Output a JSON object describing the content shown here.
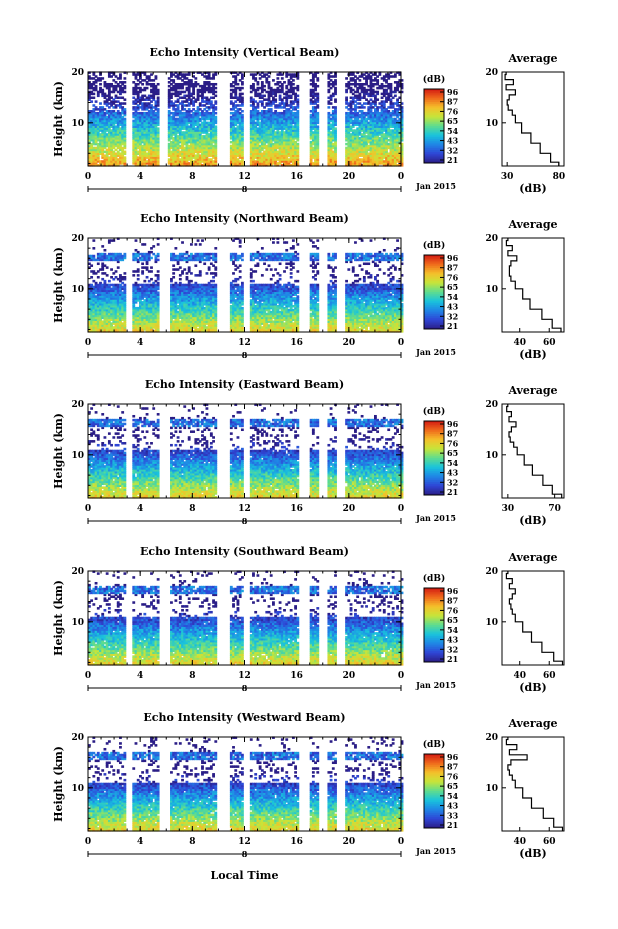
{
  "xlabel": "Local Time",
  "chart_data": [
    {
      "type": "heatmap",
      "title": "Echo Intensity (Vertical Beam)",
      "ylabel": "Height (km)",
      "x_ticks": [
        "0",
        "4",
        "8",
        "12",
        "16",
        "20",
        "0"
      ],
      "y_ticks": [
        "10",
        "20"
      ],
      "xlim": [
        0,
        24
      ],
      "ylim": [
        1.5,
        20
      ],
      "date_marker": "8",
      "date_label": "Jan 2015",
      "colorbar": {
        "unit": "(dB)",
        "ticks": [
          "96",
          "87",
          "76",
          "65",
          "54",
          "43",
          "32",
          "21"
        ]
      },
      "profile": {
        "title": "Average",
        "xlabel": "(dB)",
        "x_ticks": [
          "30",
          "80"
        ],
        "xlim": [
          25,
          85
        ],
        "y_ticks": [
          "10",
          "20"
        ],
        "heights": [
          1.5,
          3,
          5,
          7,
          9,
          11,
          12,
          13,
          14,
          15,
          16,
          17,
          18,
          19,
          20
        ],
        "values": [
          80,
          72,
          62,
          53,
          44,
          38,
          35,
          31,
          30,
          32,
          38,
          29,
          36,
          28,
          29
        ]
      }
    },
    {
      "type": "heatmap",
      "title": "Echo Intensity (Northward Beam)",
      "ylabel": "Height (km)",
      "x_ticks": [
        "0",
        "4",
        "8",
        "12",
        "16",
        "20",
        "0"
      ],
      "y_ticks": [
        "10",
        "20"
      ],
      "xlim": [
        0,
        24
      ],
      "ylim": [
        1.5,
        20
      ],
      "date_marker": "8",
      "date_label": "Jan 2015",
      "colorbar": {
        "unit": "(dB)",
        "ticks": [
          "96",
          "87",
          "76",
          "65",
          "54",
          "43",
          "32",
          "21"
        ]
      },
      "profile": {
        "title": "Average",
        "xlabel": "(dB)",
        "x_ticks": [
          "40",
          "60"
        ],
        "xlim": [
          28,
          70
        ],
        "y_ticks": [
          "10",
          "20"
        ],
        "heights": [
          1.5,
          3,
          5,
          7,
          9,
          11,
          12,
          13,
          14,
          15,
          16,
          17,
          18,
          19,
          20
        ],
        "values": [
          68,
          62,
          55,
          47,
          42,
          37,
          34,
          33,
          33,
          34,
          38,
          32,
          35,
          31,
          32
        ]
      }
    },
    {
      "type": "heatmap",
      "title": "Echo Intensity (Eastward Beam)",
      "ylabel": "Height (km)",
      "x_ticks": [
        "0",
        "4",
        "8",
        "12",
        "16",
        "20",
        "0"
      ],
      "y_ticks": [
        "10",
        "20"
      ],
      "xlim": [
        0,
        24
      ],
      "ylim": [
        1.5,
        20
      ],
      "date_marker": "8",
      "date_label": "Jan 2015",
      "colorbar": {
        "unit": "(dB)",
        "ticks": [
          "96",
          "87",
          "76",
          "65",
          "54",
          "43",
          "32",
          "21"
        ]
      },
      "profile": {
        "title": "Average",
        "xlabel": "(dB)",
        "x_ticks": [
          "30",
          "70"
        ],
        "xlim": [
          25,
          78
        ],
        "y_ticks": [
          "10",
          "20"
        ],
        "heights": [
          1.5,
          3,
          5,
          7,
          9,
          11,
          12,
          13,
          14,
          15,
          16,
          17,
          18,
          19,
          20
        ],
        "values": [
          76,
          68,
          60,
          51,
          44,
          38,
          35,
          32,
          31,
          33,
          37,
          31,
          33,
          29,
          30
        ]
      }
    },
    {
      "type": "heatmap",
      "title": "Echo Intensity (Southward Beam)",
      "ylabel": "Height (km)",
      "x_ticks": [
        "0",
        "4",
        "8",
        "12",
        "16",
        "20",
        "0"
      ],
      "y_ticks": [
        "10",
        "20"
      ],
      "xlim": [
        0,
        24
      ],
      "ylim": [
        1.5,
        20
      ],
      "date_marker": "8",
      "date_label": "Jan 2015",
      "colorbar": {
        "unit": "(dB)",
        "ticks": [
          "96",
          "87",
          "76",
          "65",
          "54",
          "43",
          "32",
          "21"
        ]
      },
      "profile": {
        "title": "Average",
        "xlabel": "(dB)",
        "x_ticks": [
          "40",
          "60"
        ],
        "xlim": [
          28,
          70
        ],
        "y_ticks": [
          "10",
          "20"
        ],
        "heights": [
          1.5,
          3,
          5,
          7,
          9,
          11,
          12,
          13,
          14,
          15,
          16,
          17,
          18,
          19,
          20
        ],
        "values": [
          69,
          63,
          55,
          48,
          42,
          37,
          35,
          34,
          33,
          35,
          37,
          33,
          35,
          31,
          32
        ]
      }
    },
    {
      "type": "heatmap",
      "title": "Echo Intensity (Westward Beam)",
      "ylabel": "Height (km)",
      "x_ticks": [
        "0",
        "4",
        "8",
        "12",
        "16",
        "20",
        "0"
      ],
      "y_ticks": [
        "10",
        "20"
      ],
      "xlim": [
        0,
        24
      ],
      "ylim": [
        1.5,
        20
      ],
      "date_marker": "8",
      "date_label": "Jan 2015",
      "colorbar": {
        "unit": "(dB)",
        "ticks": [
          "96",
          "87",
          "76",
          "65",
          "54",
          "43",
          "33",
          "21"
        ]
      },
      "profile": {
        "title": "Average",
        "xlabel": "(dB)",
        "x_ticks": [
          "40",
          "60"
        ],
        "xlim": [
          28,
          70
        ],
        "y_ticks": [
          "10",
          "20"
        ],
        "heights": [
          1.5,
          3,
          5,
          7,
          9,
          11,
          12,
          13,
          14,
          15,
          16,
          17,
          18,
          19,
          20
        ],
        "values": [
          69,
          63,
          56,
          48,
          42,
          37,
          35,
          33,
          32,
          34,
          45,
          33,
          38,
          31,
          32
        ]
      }
    }
  ]
}
